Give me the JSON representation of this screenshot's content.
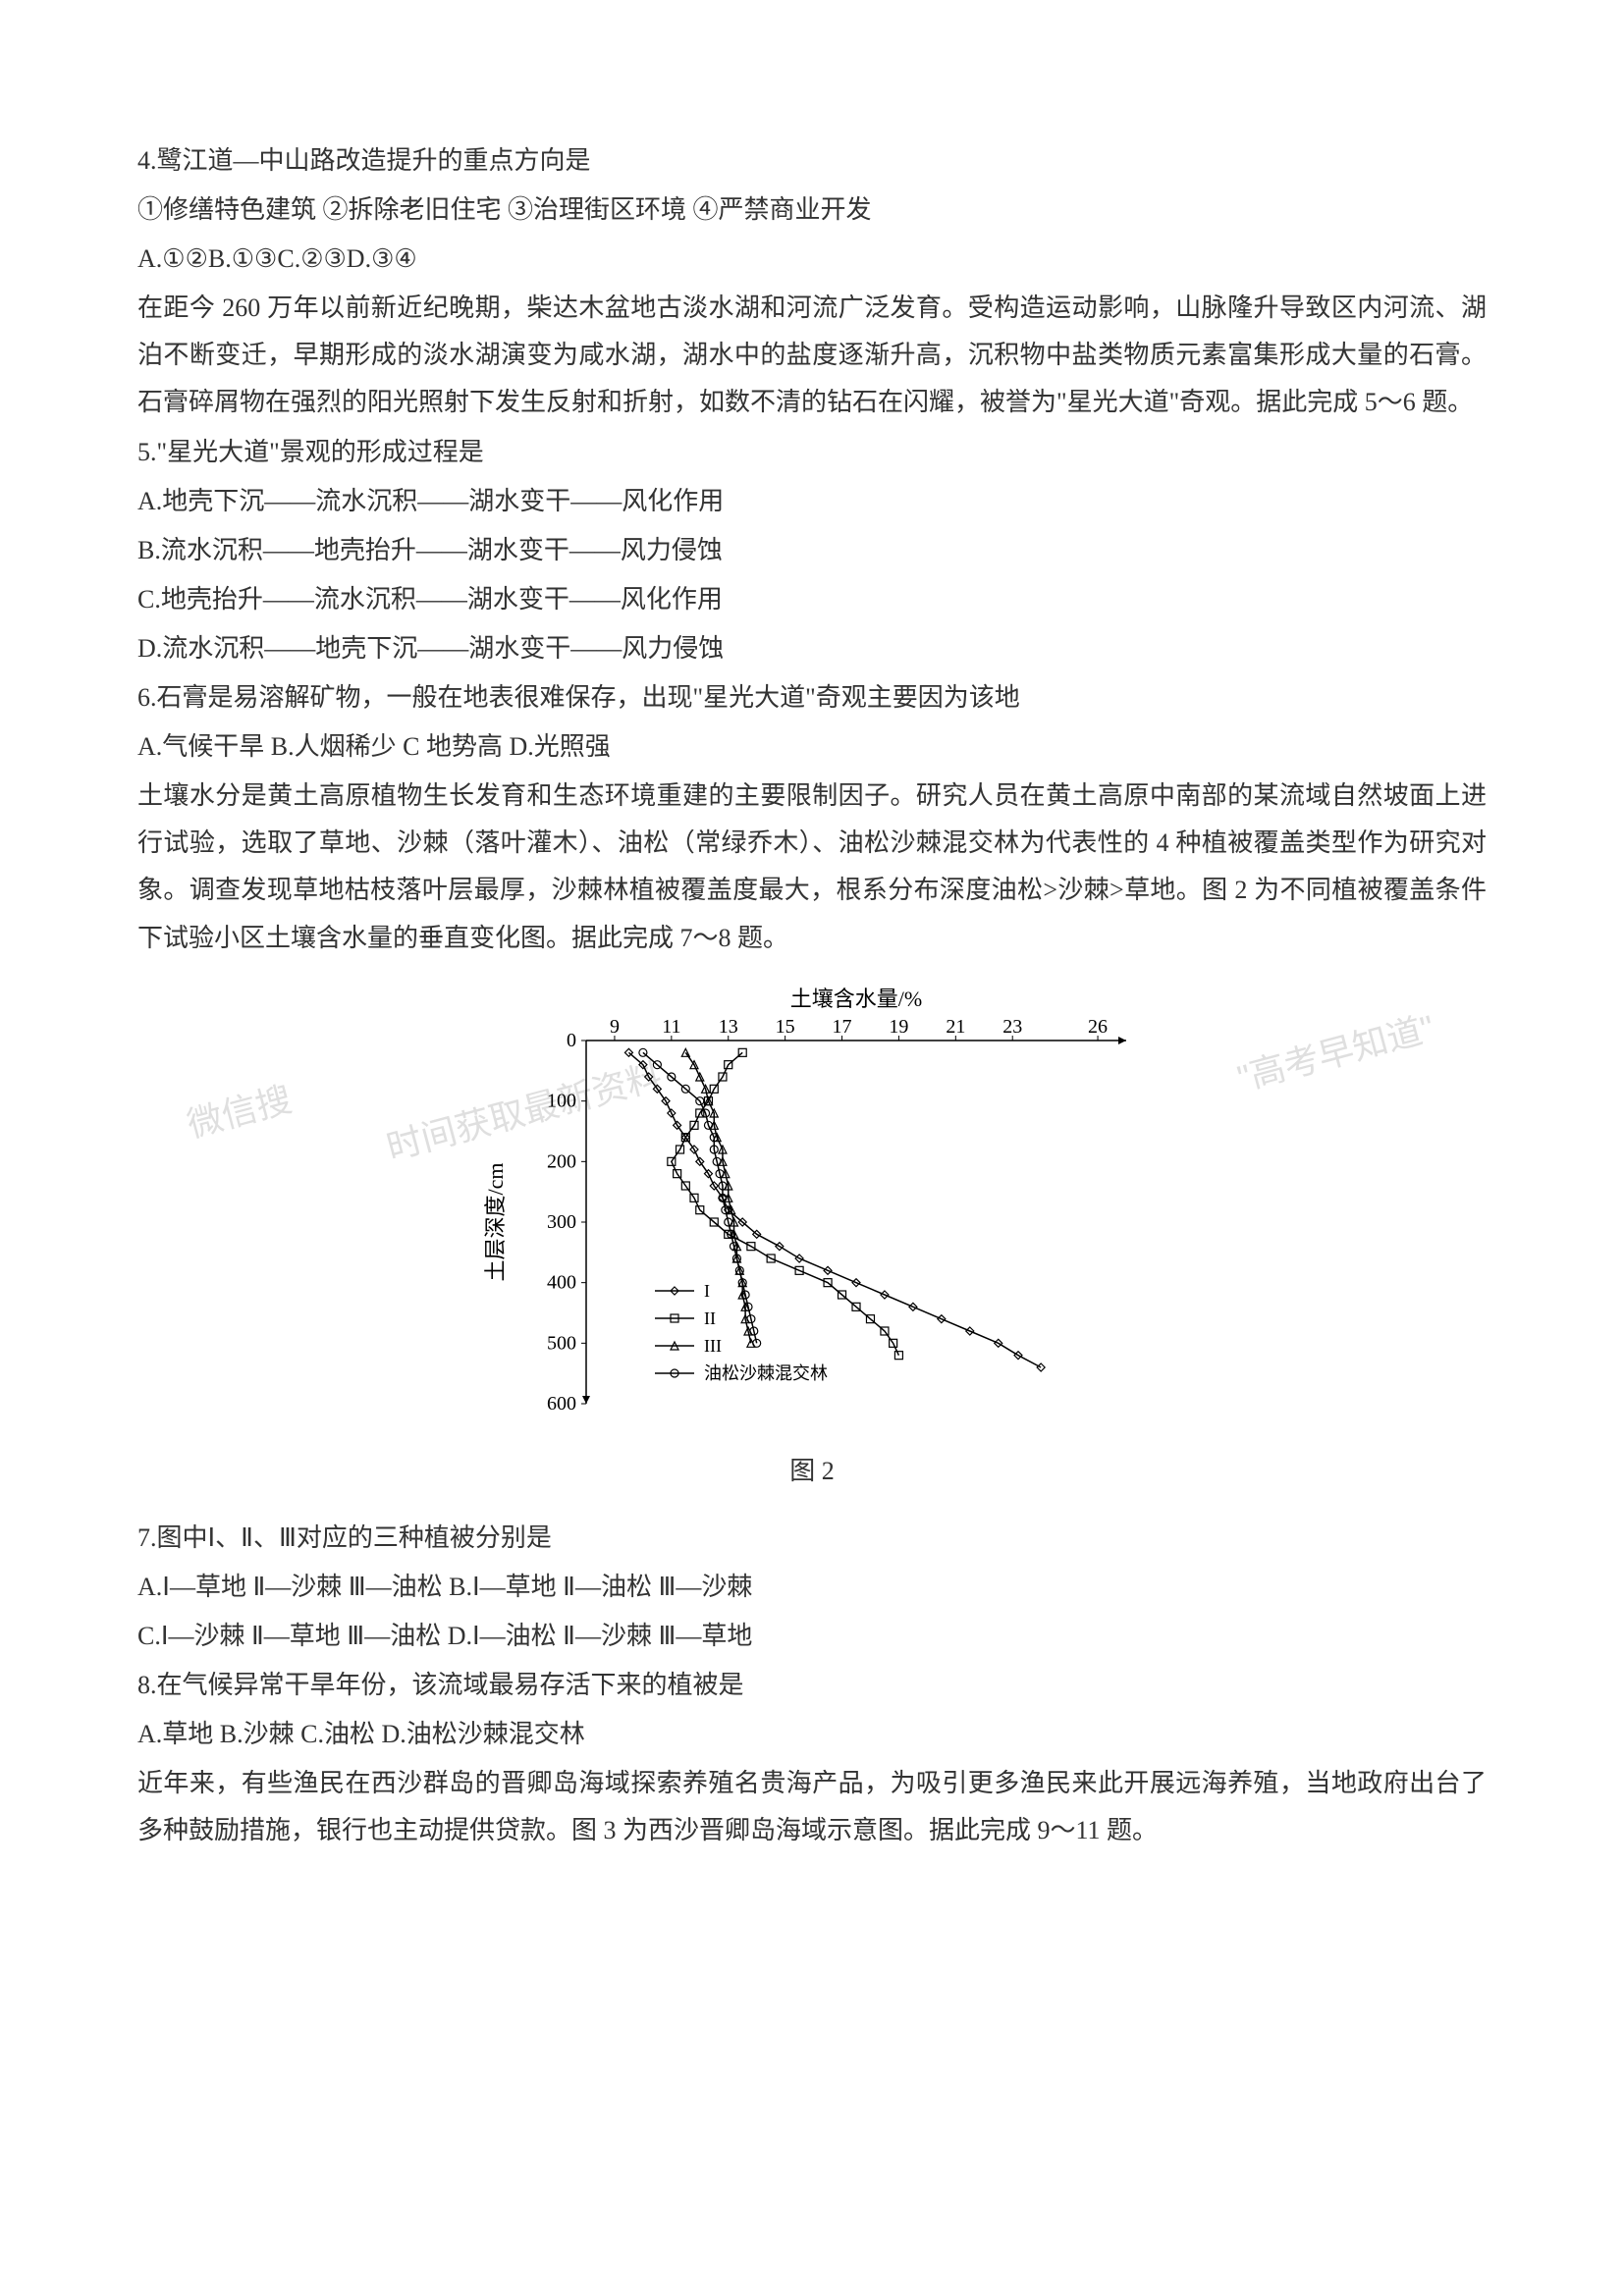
{
  "q4": {
    "stem": "4.鹭江道—中山路改造提升的重点方向是",
    "options_line": "①修缮特色建筑  ②拆除老旧住宅  ③治理街区环境  ④严禁商业开发",
    "choices": "A.①②B.①③C.②③D.③④"
  },
  "passage56": {
    "text": "在距今 260 万年以前新近纪晚期，柴达木盆地古淡水湖和河流广泛发育。受构造运动影响，山脉隆升导致区内河流、湖泊不断变迁，早期形成的淡水湖演变为咸水湖，湖水中的盐度逐渐升高，沉积物中盐类物质元素富集形成大量的石膏。石膏碎屑物在强烈的阳光照射下发生反射和折射，如数不清的钻石在闪耀，被誉为\"星光大道\"奇观。据此完成 5～6 题。"
  },
  "q5": {
    "stem": "5.\"星光大道\"景观的形成过程是",
    "a": "A.地壳下沉——流水沉积——湖水变干——风化作用",
    "b": "B.流水沉积——地壳抬升——湖水变干——风力侵蚀",
    "c": "C.地壳抬升——流水沉积——湖水变干——风化作用",
    "d": "D.流水沉积——地壳下沉——湖水变干——风力侵蚀"
  },
  "q6": {
    "stem": "6.石膏是易溶解矿物，一般在地表很难保存，出现\"星光大道\"奇观主要因为该地",
    "choices": "A.气候干旱 B.人烟稀少 C 地势高 D.光照强"
  },
  "passage78": {
    "text": "土壤水分是黄土高原植物生长发育和生态环境重建的主要限制因子。研究人员在黄土高原中南部的某流域自然坡面上进行试验，选取了草地、沙棘（落叶灌木）、油松（常绿乔木）、油松沙棘混交林为代表性的 4 种植被覆盖类型作为研究对象。调查发现草地枯枝落叶层最厚，沙棘林植被覆盖度最大，根系分布深度油松>沙棘>草地。图 2 为不同植被覆盖条件下试验小区土壤含水量的垂直变化图。据此完成 7～8 题。"
  },
  "figure2": {
    "type": "line",
    "title": "土壤含水量/%",
    "x_axis": {
      "label": "土壤含水量/%",
      "ticks": [
        9,
        11,
        13,
        15,
        17,
        19,
        21,
        23,
        26
      ],
      "lim": [
        8,
        27
      ]
    },
    "y_axis": {
      "label": "土层深度/cm",
      "ticks": [
        0,
        100,
        200,
        300,
        400,
        500,
        600
      ],
      "lim": [
        600,
        0
      ],
      "inverted": true
    },
    "series": [
      {
        "name": "I",
        "marker": "diamond",
        "color": "#000000",
        "data": [
          [
            9.5,
            20
          ],
          [
            10,
            40
          ],
          [
            10.2,
            60
          ],
          [
            10.5,
            80
          ],
          [
            10.8,
            100
          ],
          [
            11,
            120
          ],
          [
            11.2,
            140
          ],
          [
            11.5,
            160
          ],
          [
            11.8,
            180
          ],
          [
            12,
            200
          ],
          [
            12.3,
            220
          ],
          [
            12.5,
            240
          ],
          [
            12.8,
            260
          ],
          [
            13,
            280
          ],
          [
            13.5,
            300
          ],
          [
            14,
            320
          ],
          [
            14.8,
            340
          ],
          [
            15.5,
            360
          ],
          [
            16.5,
            380
          ],
          [
            17.5,
            400
          ],
          [
            18.5,
            420
          ],
          [
            19.5,
            440
          ],
          [
            20.5,
            460
          ],
          [
            21.5,
            480
          ],
          [
            22.5,
            500
          ],
          [
            23.2,
            520
          ],
          [
            24,
            540
          ]
        ]
      },
      {
        "name": "II",
        "marker": "square",
        "color": "#000000",
        "data": [
          [
            13.5,
            20
          ],
          [
            13,
            40
          ],
          [
            12.8,
            60
          ],
          [
            12.5,
            80
          ],
          [
            12.3,
            100
          ],
          [
            12,
            120
          ],
          [
            11.8,
            140
          ],
          [
            11.5,
            160
          ],
          [
            11.3,
            180
          ],
          [
            11,
            200
          ],
          [
            11.2,
            220
          ],
          [
            11.5,
            240
          ],
          [
            11.8,
            260
          ],
          [
            12,
            280
          ],
          [
            12.5,
            300
          ],
          [
            13,
            320
          ],
          [
            13.8,
            340
          ],
          [
            14.5,
            360
          ],
          [
            15.5,
            380
          ],
          [
            16.5,
            400
          ],
          [
            17,
            420
          ],
          [
            17.5,
            440
          ],
          [
            18,
            460
          ],
          [
            18.5,
            480
          ],
          [
            18.8,
            500
          ],
          [
            19,
            520
          ]
        ]
      },
      {
        "name": "III",
        "marker": "triangle",
        "color": "#000000",
        "data": [
          [
            11.5,
            20
          ],
          [
            11.8,
            40
          ],
          [
            12,
            60
          ],
          [
            12.2,
            80
          ],
          [
            12.3,
            100
          ],
          [
            12.5,
            120
          ],
          [
            12.5,
            140
          ],
          [
            12.6,
            160
          ],
          [
            12.8,
            180
          ],
          [
            12.8,
            200
          ],
          [
            12.9,
            220
          ],
          [
            13,
            240
          ],
          [
            13,
            260
          ],
          [
            13.1,
            280
          ],
          [
            13.2,
            300
          ],
          [
            13.2,
            320
          ],
          [
            13.3,
            340
          ],
          [
            13.3,
            360
          ],
          [
            13.4,
            380
          ],
          [
            13.5,
            400
          ],
          [
            13.5,
            420
          ],
          [
            13.6,
            440
          ],
          [
            13.6,
            460
          ],
          [
            13.7,
            480
          ],
          [
            13.8,
            500
          ]
        ]
      },
      {
        "name": "油松沙棘混交林",
        "marker": "circle",
        "color": "#000000",
        "data": [
          [
            10,
            20
          ],
          [
            10.5,
            40
          ],
          [
            11,
            60
          ],
          [
            11.5,
            80
          ],
          [
            12,
            100
          ],
          [
            12.2,
            120
          ],
          [
            12.3,
            140
          ],
          [
            12.5,
            160
          ],
          [
            12.5,
            180
          ],
          [
            12.6,
            200
          ],
          [
            12.7,
            220
          ],
          [
            12.8,
            240
          ],
          [
            12.8,
            260
          ],
          [
            12.9,
            280
          ],
          [
            13,
            300
          ],
          [
            13.1,
            320
          ],
          [
            13.2,
            340
          ],
          [
            13.3,
            360
          ],
          [
            13.4,
            380
          ],
          [
            13.5,
            400
          ],
          [
            13.6,
            420
          ],
          [
            13.7,
            440
          ],
          [
            13.8,
            460
          ],
          [
            13.9,
            480
          ],
          [
            14,
            500
          ]
        ]
      }
    ],
    "legend": {
      "items": [
        "I",
        "II",
        "III",
        "油松沙棘混交林"
      ],
      "position": "inside-left-bottom"
    },
    "caption": "图 2",
    "line_width": 1.5,
    "marker_size": 6,
    "background_color": "#ffffff",
    "axis_color": "#000000",
    "font_size_axis": 20,
    "font_size_label": 22
  },
  "q7": {
    "stem": "7.图中Ⅰ、Ⅱ、Ⅲ对应的三种植被分别是",
    "line1": "A.Ⅰ—草地  Ⅱ—沙棘  Ⅲ—油松  B.Ⅰ—草地  Ⅱ—油松  Ⅲ—沙棘",
    "line2": "C.Ⅰ—沙棘  Ⅱ—草地  Ⅲ—油松  D.Ⅰ—油松  Ⅱ—沙棘  Ⅲ—草地"
  },
  "q8": {
    "stem": "8.在气候异常干旱年份，该流域最易存活下来的植被是",
    "choices": "A.草地 B.沙棘 C.油松 D.油松沙棘混交林"
  },
  "passage911": {
    "text": "近年来，有些渔民在西沙群岛的晋卿岛海域探索养殖名贵海产品，为吸引更多渔民来此开展远海养殖，当地政府出台了多种鼓励措施，银行也主动提供贷款。图 3 为西沙晋卿岛海域示意图。据此完成 9～11 题。"
  },
  "watermarks": {
    "w1": "\"高考早知道\"",
    "w2": "微信搜",
    "w3": "时间获取最新资料"
  }
}
